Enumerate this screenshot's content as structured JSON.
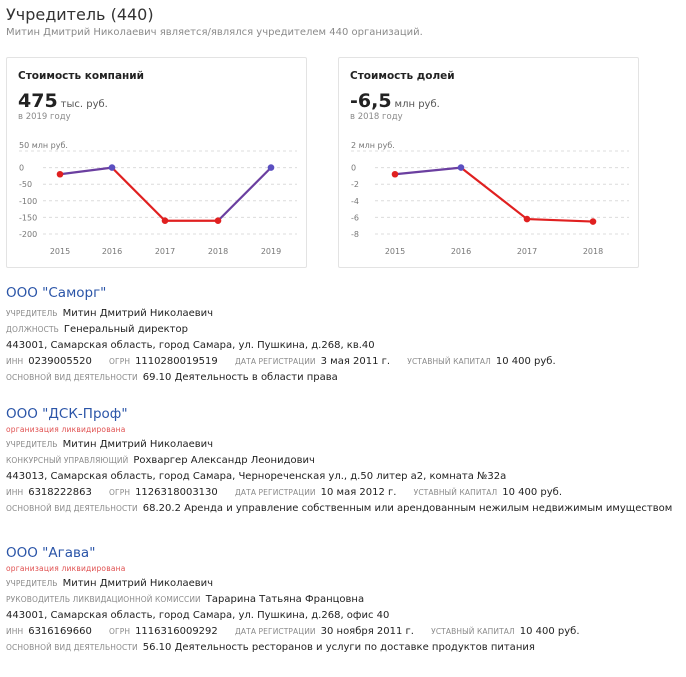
{
  "header": {
    "title": "Учредитель (440)",
    "subtitle": "Митин Дмитрий Николаевич является/являлся учредителем 440 организаций."
  },
  "cards": {
    "companies": {
      "title": "Стоимость компаний",
      "value": "475",
      "unit": "тыс. руб.",
      "year_note": "в 2019 году",
      "top_label": "50 млн руб."
    },
    "shares": {
      "title": "Стоимость долей",
      "value": "-6,5",
      "unit": "млн руб.",
      "year_note": "в 2018 году",
      "top_label": "2 млн руб."
    }
  },
  "chart_data": [
    {
      "type": "line",
      "x": [
        "2015",
        "2016",
        "2017",
        "2018",
        "2019"
      ],
      "series": [
        {
          "values": [
            -20,
            0,
            -160,
            -160,
            0
          ]
        }
      ],
      "yticks": [
        "0",
        "-50",
        "-100",
        "-150",
        "-200"
      ],
      "ylim": [
        -200,
        50
      ],
      "grid": true,
      "colors": {
        "down": "#e02020",
        "up": "#6b3fa0",
        "point_up": "#5b4fc0"
      }
    },
    {
      "type": "line",
      "x": [
        "2015",
        "2016",
        "2017",
        "2018"
      ],
      "series": [
        {
          "values": [
            -0.8,
            0,
            -6.2,
            -6.5
          ]
        }
      ],
      "yticks": [
        "0",
        "-2",
        "-4",
        "-6",
        "-8"
      ],
      "ylim": [
        -8,
        2
      ],
      "grid": true,
      "colors": {
        "down": "#e02020",
        "up": "#6b3fa0",
        "point_up": "#5b4fc0"
      }
    }
  ],
  "orgs": [
    {
      "name": "ООО \"Саморг\"",
      "status": "",
      "founder_label": "учредитель",
      "founder": "Митин Дмитрий Николаевич",
      "role_label": "должность",
      "role": "Генеральный директор",
      "address": "443001, Самарская область, город Самара, ул. Пушкина, д.268, кв.40",
      "inn_label": "инн",
      "inn": "0239005520",
      "ogrn_label": "огрн",
      "ogrn": "1110280019519",
      "reg_label": "дата регистрации",
      "reg": "3 мая 2011 г.",
      "cap_label": "уставный капитал",
      "cap": "10 400 руб.",
      "activity_label": "основной вид деятельности",
      "activity": "69.10 Деятельность в области права"
    },
    {
      "name": "ООО \"ДСК-Проф\"",
      "status": "организация ликвидирована",
      "founder_label": "учредитель",
      "founder": "Митин Дмитрий Николаевич",
      "role_label": "конкурсный управляющий",
      "role": "Рохваргер Александр Леонидович",
      "address": "443013, Самарская область, город Самара, Чернореченская ул., д.50 литер а2, комната №32а",
      "inn_label": "инн",
      "inn": "6318222863",
      "ogrn_label": "огрн",
      "ogrn": "1126318003130",
      "reg_label": "дата регистрации",
      "reg": "10 мая 2012 г.",
      "cap_label": "уставный капитал",
      "cap": "10 400 руб.",
      "activity_label": "основной вид деятельности",
      "activity": "68.20.2 Аренда и управление собственным или арендованным нежилым недвижимым имуществом"
    },
    {
      "name": "ООО \"Агава\"",
      "status": "организация ликвидирована",
      "founder_label": "учредитель",
      "founder": "Митин Дмитрий Николаевич",
      "role_label": "руководитель ликвидационной комиссии",
      "role": "Тарарина Татьяна Францовна",
      "address": "443001, Самарская область, город Самара, ул. Пушкина, д.268, офис 40",
      "inn_label": "инн",
      "inn": "6316169660",
      "ogrn_label": "огрн",
      "ogrn": "1116316009292",
      "reg_label": "дата регистрации",
      "reg": "30 ноября 2011 г.",
      "cap_label": "уставный капитал",
      "cap": "10 400 руб.",
      "activity_label": "основной вид деятельности",
      "activity": "56.10 Деятельность ресторанов и услуги по доставке продуктов питания"
    }
  ]
}
